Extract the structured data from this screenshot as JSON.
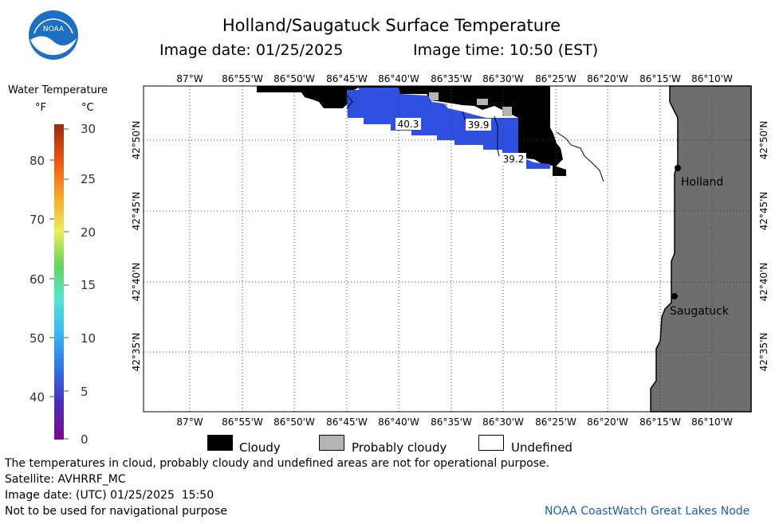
{
  "title": "Holland/Saugatuck Surface Temperature",
  "image_date_label": "Image date: 01/25/2025",
  "image_time_label": "Image time: 10:50 (EST)",
  "colorbar": {
    "title": "Water Temperature",
    "unit_f": "°F",
    "unit_c": "°C",
    "f_ticks": [
      "80",
      "70",
      "60",
      "50",
      "40"
    ],
    "c_ticks": [
      "30",
      "25",
      "20",
      "15",
      "10",
      "5",
      "0"
    ]
  },
  "map": {
    "lon_labels": [
      "87°W",
      "86°55'W",
      "86°50'W",
      "86°45'W",
      "86°40'W",
      "86°35'W",
      "86°30'W",
      "86°25'W",
      "86°20'W",
      "86°15'W",
      "86°10'W"
    ],
    "lat_labels": [
      "42°50'N",
      "42°45'N",
      "42°40'N",
      "42°35'N"
    ],
    "temperature_labels": [
      "40.3",
      "39.9",
      "39.2"
    ],
    "cities": [
      "Holland",
      "Saugatuck"
    ],
    "colors": {
      "water_cold": "#2f4fe0",
      "cloud": "#000000",
      "probably_cloudy": "#b4b4b4",
      "land": "#6e6e6e",
      "undefined": "#ffffff"
    }
  },
  "legend": {
    "cloudy": "Cloudy",
    "probably_cloudy": "Probably cloudy",
    "undefined": "Undefined"
  },
  "footer": {
    "disclaimer": "The temperatures in cloud, probably cloudy and undefined areas are not for operational purpose.",
    "satellite": "Satellite: AVHRRF_MC",
    "utc_date": "Image date: (UTC) 01/25/2025  15:50",
    "nav_warning": "Not to be used for navigational purpose",
    "credit": "NOAA CoastWatch Great Lakes Node"
  },
  "logo_text": "NOAA"
}
